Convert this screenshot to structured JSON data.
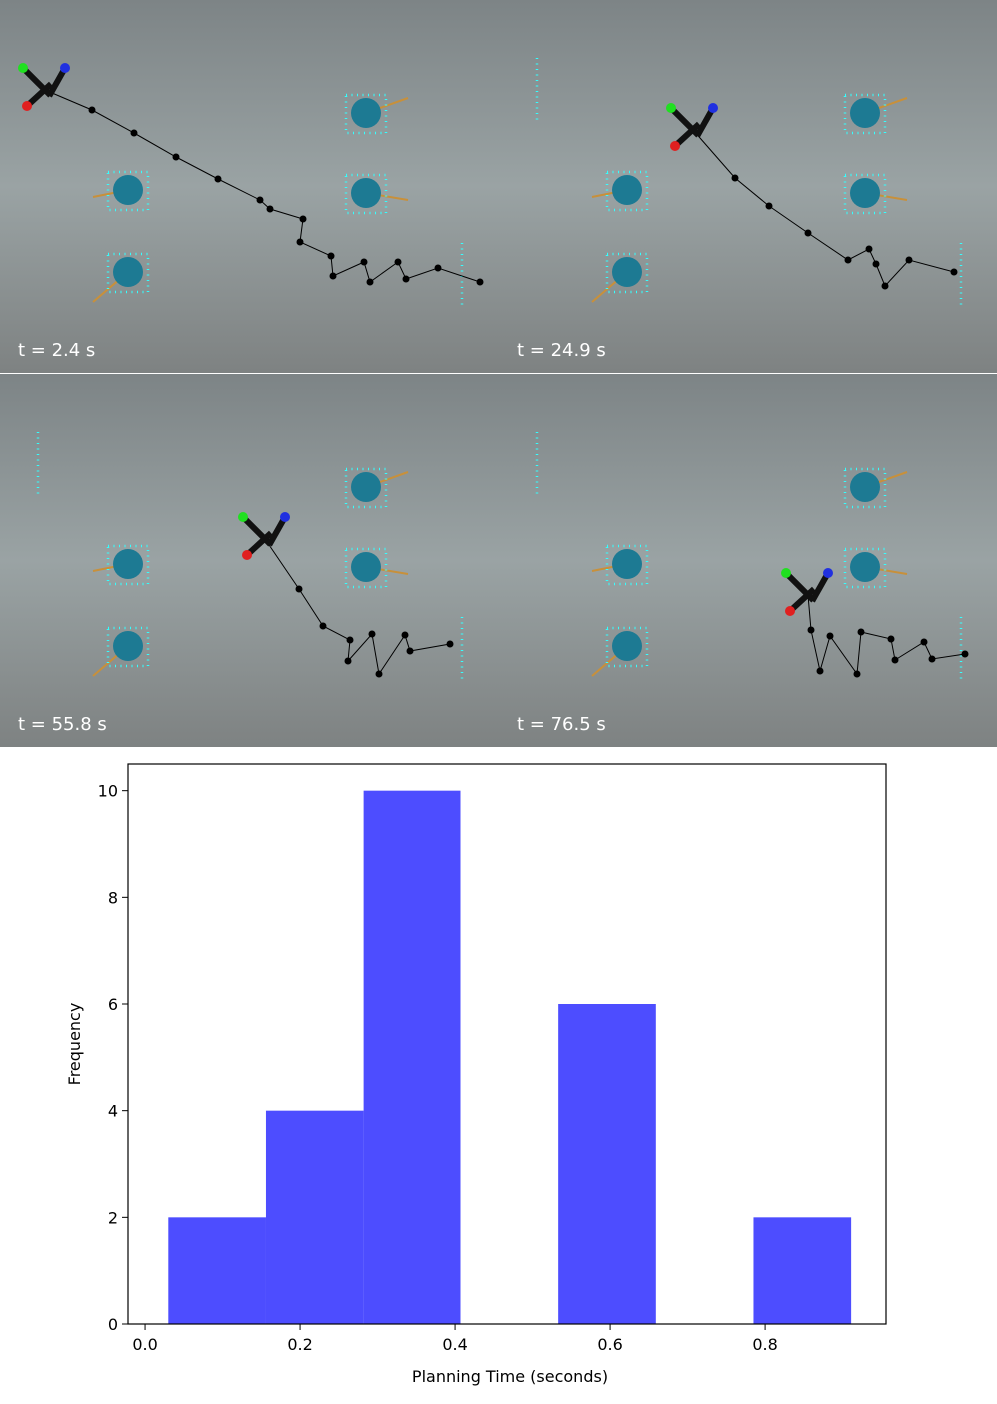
{
  "panels": [
    {
      "label": "t = 2.4 s"
    },
    {
      "label": "t = 24.9 s"
    },
    {
      "label": "t = 55.8 s"
    },
    {
      "label": "t = 76.5 s"
    }
  ],
  "chart_data": {
    "type": "histogram",
    "x_label": "Planning Time (seconds)",
    "y_label": "Frequency",
    "bins": [
      0.03,
      0.156,
      0.282,
      0.407,
      0.533,
      0.659,
      0.785,
      0.911
    ],
    "values": [
      2,
      4,
      10,
      0,
      6,
      0,
      2
    ],
    "color": "#4d4dff",
    "xlim": [
      -0.022,
      0.956
    ],
    "ylim": [
      0,
      10.5
    ],
    "xticks": [
      {
        "value": 0,
        "label": "0.0"
      },
      {
        "value": 0.2,
        "label": "0.2"
      },
      {
        "value": 0.4,
        "label": "0.4"
      },
      {
        "value": 0.6,
        "label": "0.6"
      },
      {
        "value": 0.8,
        "label": "0.8"
      }
    ],
    "yticks": [
      0,
      2,
      4,
      6,
      8,
      10
    ]
  }
}
